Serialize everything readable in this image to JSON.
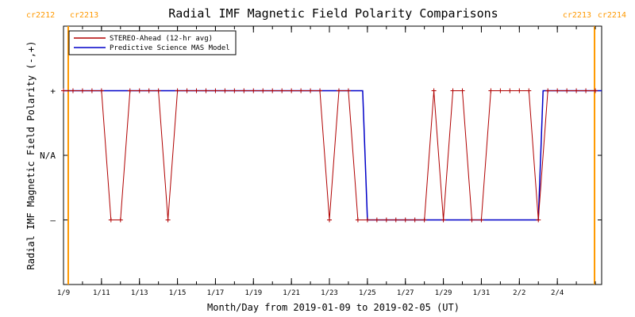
{
  "chart_data": {
    "type": "line",
    "title": "Radial IMF Magnetic Field Polarity Comparisons",
    "xlabel": "Month/Day from 2019-01-09 to 2019-02-05 (UT)",
    "ylabel": "Radial IMF Magnetic Field Polarity (-,+)",
    "x_range": [
      "2019-01-09T00:00",
      "2019-02-06T08:00"
    ],
    "x_tick_labels": [
      "1/9",
      "1/11",
      "1/13",
      "1/15",
      "1/17",
      "1/19",
      "1/21",
      "1/23",
      "1/25",
      "1/27",
      "1/29",
      "1/31",
      "2/2",
      "2/4"
    ],
    "y_tick_labels": [
      "+",
      "N/A",
      "–"
    ],
    "y_levels": [
      1,
      0,
      -1
    ],
    "ylim": [
      -2,
      2
    ],
    "carrington_markers": [
      {
        "x": "2019-01-09T06:00",
        "left_label": "cr2212",
        "right_label": "cr2213"
      },
      {
        "x": "2019-02-05T23:00",
        "left_label": "cr2213",
        "right_label": "cr2214"
      }
    ],
    "legend_position": "top-left",
    "series": [
      {
        "name": "STEREO-Ahead (12-hr avg)",
        "color": "#b00000",
        "marker": "+",
        "x": [
          "2019-01-09T00:00",
          "2019-01-09T12:00",
          "2019-01-10T00:00",
          "2019-01-10T12:00",
          "2019-01-11T00:00",
          "2019-01-11T12:00",
          "2019-01-12T00:00",
          "2019-01-12T12:00",
          "2019-01-13T00:00",
          "2019-01-13T12:00",
          "2019-01-14T00:00",
          "2019-01-14T12:00",
          "2019-01-15T00:00",
          "2019-01-15T12:00",
          "2019-01-16T00:00",
          "2019-01-16T12:00",
          "2019-01-17T00:00",
          "2019-01-17T12:00",
          "2019-01-18T00:00",
          "2019-01-18T12:00",
          "2019-01-19T00:00",
          "2019-01-19T12:00",
          "2019-01-20T00:00",
          "2019-01-20T12:00",
          "2019-01-21T00:00",
          "2019-01-21T12:00",
          "2019-01-22T00:00",
          "2019-01-22T12:00",
          "2019-01-23T00:00",
          "2019-01-23T12:00",
          "2019-01-24T00:00",
          "2019-01-24T12:00",
          "2019-01-25T00:00",
          "2019-01-25T12:00",
          "2019-01-26T00:00",
          "2019-01-26T12:00",
          "2019-01-27T00:00",
          "2019-01-27T12:00",
          "2019-01-28T00:00",
          "2019-01-28T12:00",
          "2019-01-29T00:00",
          "2019-01-29T12:00",
          "2019-01-30T00:00",
          "2019-01-30T12:00",
          "2019-01-31T00:00",
          "2019-01-31T12:00",
          "2019-02-01T00:00",
          "2019-02-01T12:00",
          "2019-02-02T00:00",
          "2019-02-02T12:00",
          "2019-02-03T00:00",
          "2019-02-03T12:00",
          "2019-02-04T00:00",
          "2019-02-04T12:00",
          "2019-02-05T00:00",
          "2019-02-05T12:00",
          "2019-02-06T00:00"
        ],
        "y": [
          1,
          1,
          1,
          1,
          1,
          -1,
          -1,
          1,
          1,
          1,
          1,
          -1,
          1,
          1,
          1,
          1,
          1,
          1,
          1,
          1,
          1,
          1,
          1,
          1,
          1,
          1,
          1,
          1,
          -1,
          1,
          1,
          -1,
          -1,
          -1,
          -1,
          -1,
          -1,
          -1,
          -1,
          1,
          -1,
          1,
          1,
          -1,
          -1,
          1,
          1,
          1,
          1,
          1,
          -1,
          1,
          1,
          1,
          1,
          1,
          1
        ]
      },
      {
        "name": "Predictive Science MAS Model",
        "color": "#0000c8",
        "x": [
          "2019-01-09T00:00",
          "2019-01-24T18:00",
          "2019-01-25T00:00",
          "2019-02-03T00:00",
          "2019-02-03T06:00",
          "2019-02-06T08:00"
        ],
        "y": [
          1,
          1,
          -1,
          -1,
          1,
          1
        ]
      }
    ]
  }
}
